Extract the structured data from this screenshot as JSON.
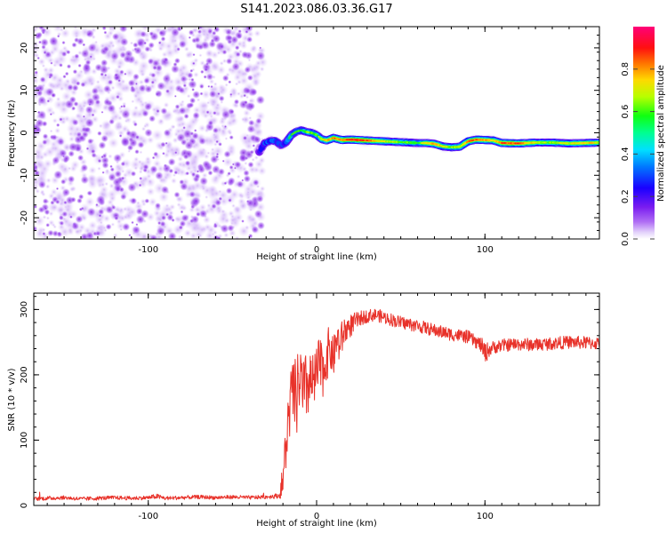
{
  "title": "S141.2023.086.03.36.G17",
  "colors": {
    "snr_line": "#e8322a",
    "axes": "#000000",
    "colormap": [
      "#ffffff",
      "#c79bf2",
      "#8f2bf0",
      "#1a00ff",
      "#0090ff",
      "#00f0ff",
      "#00ff40",
      "#c8ff00",
      "#ffb000",
      "#ff2000",
      "#ff0070"
    ]
  },
  "chart_data": [
    {
      "type": "heatmap",
      "xlabel": "Height of straight line (km)",
      "ylabel": "Frequency (Hz)",
      "xlim": [
        -168,
        168
      ],
      "ylim": [
        -25,
        25
      ],
      "xticks": [
        -100,
        0,
        100
      ],
      "xtick_labels": [
        "-100",
        "0",
        "100"
      ],
      "yticks": [
        -20,
        -10,
        0,
        10,
        20
      ],
      "ytick_labels": [
        "-20",
        "-10",
        "0",
        "10",
        "20"
      ],
      "noise_region_x": [
        -168,
        -34
      ],
      "ridge": {
        "x": [
          -34,
          -31,
          -27,
          -24,
          -21,
          -18,
          -15,
          -12,
          -9,
          -6,
          -3,
          0,
          3,
          6,
          10,
          15,
          20,
          30,
          40,
          50,
          60,
          65,
          70,
          75,
          80,
          85,
          90,
          95,
          100,
          105,
          110,
          120,
          130,
          140,
          150,
          160,
          168
        ],
        "y": [
          -4.5,
          -2.5,
          -1.8,
          -2.0,
          -3.0,
          -2.2,
          -0.5,
          0.3,
          0.6,
          0.2,
          0.0,
          -0.5,
          -1.5,
          -1.8,
          -1.2,
          -1.7,
          -1.6,
          -1.8,
          -2.0,
          -2.2,
          -2.4,
          -2.4,
          -2.6,
          -3.2,
          -3.4,
          -3.3,
          -2.0,
          -1.6,
          -1.7,
          -1.8,
          -2.4,
          -2.5,
          -2.3,
          -2.3,
          -2.5,
          -2.4,
          -2.3
        ],
        "amp": [
          0.35,
          0.45,
          0.5,
          0.45,
          0.4,
          0.5,
          0.55,
          0.6,
          0.55,
          0.6,
          0.65,
          0.6,
          0.7,
          0.75,
          0.8,
          0.85,
          0.9,
          0.85,
          0.7,
          0.65,
          0.6,
          0.75,
          0.8,
          0.7,
          0.65,
          0.7,
          0.8,
          0.85,
          0.8,
          0.75,
          0.85,
          0.85,
          0.7,
          0.65,
          0.7,
          0.75,
          0.7
        ]
      },
      "colorbar": {
        "label": "Normalized spectral amplitude",
        "lim": [
          0,
          1
        ],
        "ticks": [
          0.0,
          0.2,
          0.4,
          0.6,
          0.8
        ],
        "tick_labels": [
          "0.0",
          "0.2",
          "0.4",
          "0.6",
          "0.8"
        ]
      }
    },
    {
      "type": "line",
      "xlabel": "Height of straight line (km)",
      "ylabel": "SNR (10 * v/v)",
      "xlim": [
        -168,
        168
      ],
      "ylim": [
        0,
        325
      ],
      "xticks": [
        -100,
        0,
        100
      ],
      "xtick_labels": [
        "-100",
        "0",
        "100"
      ],
      "yticks": [
        0,
        100,
        200,
        300
      ],
      "ytick_labels": [
        "0",
        "100",
        "200",
        "300"
      ],
      "series": [
        {
          "x": [
            -168,
            -160,
            -150,
            -140,
            -130,
            -120,
            -110,
            -100,
            -95,
            -90,
            -80,
            -70,
            -60,
            -50,
            -40,
            -30,
            -22,
            -20,
            -18,
            -16,
            -14,
            -12,
            -10,
            -8,
            -6,
            -4,
            -2,
            0,
            2,
            4,
            6,
            8,
            10,
            12,
            14,
            16,
            18,
            20,
            25,
            30,
            35,
            40,
            50,
            60,
            70,
            80,
            90,
            95,
            98,
            100,
            102,
            105,
            110,
            120,
            130,
            140,
            150,
            160,
            168
          ],
          "y": [
            10,
            11,
            12,
            10,
            11,
            12,
            11,
            12,
            14,
            11,
            12,
            13,
            12,
            13,
            12,
            13,
            15,
            40,
            95,
            150,
            175,
            160,
            200,
            165,
            180,
            190,
            185,
            200,
            215,
            205,
            230,
            240,
            225,
            255,
            245,
            265,
            270,
            275,
            285,
            290,
            292,
            288,
            280,
            275,
            268,
            262,
            258,
            250,
            245,
            232,
            238,
            242,
            245,
            247,
            246,
            248,
            250,
            249,
            248
          ],
          "jitter": [
            3,
            3,
            3,
            3,
            3,
            3,
            3,
            3,
            4,
            3,
            3,
            3,
            3,
            3,
            3,
            3,
            4,
            30,
            40,
            50,
            55,
            60,
            55,
            60,
            55,
            50,
            45,
            45,
            45,
            40,
            40,
            35,
            30,
            30,
            30,
            25,
            20,
            18,
            12,
            10,
            10,
            10,
            10,
            10,
            10,
            10,
            10,
            10,
            12,
            18,
            12,
            10,
            10,
            10,
            10,
            10,
            10,
            10,
            10
          ]
        }
      ]
    }
  ]
}
